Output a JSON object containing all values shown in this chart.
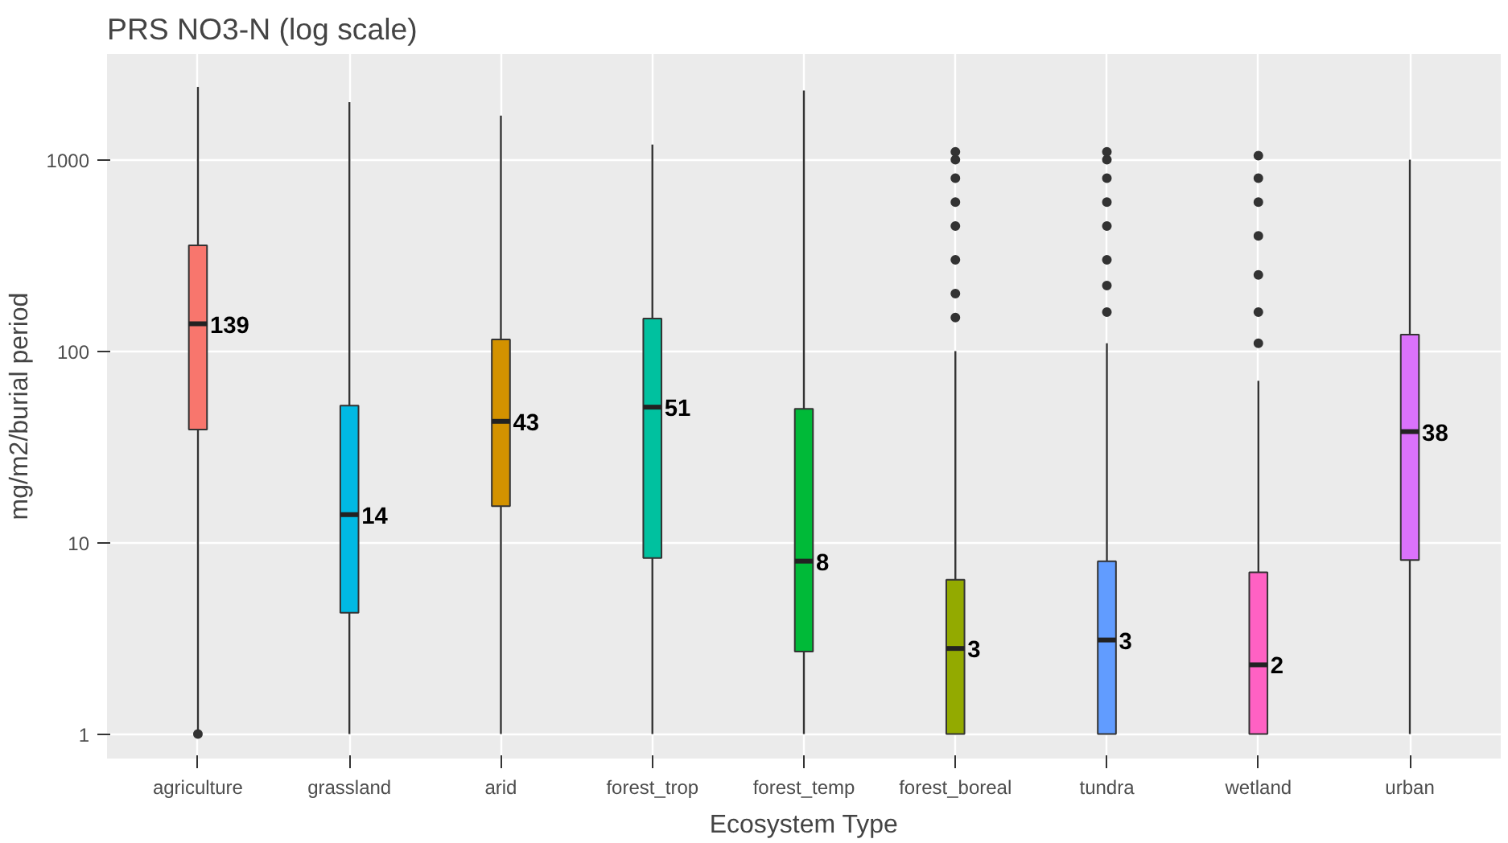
{
  "chart_data": {
    "type": "box",
    "title": "PRS NO3-N (log scale)",
    "xlabel": "Ecosystem Type",
    "ylabel": "mg/m2/burial period",
    "log": "y",
    "grid": true,
    "categories": [
      "agriculture",
      "grassland",
      "arid",
      "forest_trop",
      "forest_temp",
      "forest_boreal",
      "tundra",
      "wetland",
      "urban"
    ],
    "colors": [
      "#f8766d",
      "#00b9e3",
      "#d39200",
      "#00c19f",
      "#00ba38",
      "#93aa00",
      "#619cff",
      "#ff61c3",
      "#db72fb"
    ],
    "ylim": [
      0.745,
      3570
    ],
    "yticks": [
      1,
      10,
      100,
      1000
    ],
    "boxes": [
      {
        "low": 1,
        "q1": 39,
        "median": 139,
        "q3": 357,
        "high": 2400,
        "outliers": [
          1
        ]
      },
      {
        "low": 1,
        "q1": 4.3,
        "median": 14,
        "q3": 52,
        "high": 2000
      },
      {
        "low": 1,
        "q1": 15.5,
        "median": 43,
        "q3": 115,
        "high": 1700
      },
      {
        "low": 1,
        "q1": 8.3,
        "median": 51,
        "q3": 148,
        "high": 1200
      },
      {
        "low": 1,
        "q1": 2.7,
        "median": 8,
        "q3": 50,
        "high": 2300
      },
      {
        "low": 1,
        "q1": 1,
        "median": 2.8,
        "q3": 6.4,
        "high": 100,
        "outliers": [
          150,
          200,
          300,
          450,
          600,
          800,
          1000,
          1100
        ]
      },
      {
        "low": 1,
        "q1": 1,
        "median": 3.1,
        "q3": 8,
        "high": 110,
        "outliers": [
          160,
          220,
          300,
          450,
          600,
          800,
          1000,
          1100
        ]
      },
      {
        "low": 1,
        "q1": 1,
        "median": 2.3,
        "q3": 7,
        "high": 70,
        "outliers": [
          110,
          160,
          250,
          400,
          600,
          800,
          1050
        ]
      },
      {
        "low": 1,
        "q1": 8.1,
        "median": 38,
        "q3": 122,
        "high": 1000
      }
    ],
    "annotations": [
      {
        "text": "139",
        "x": "agriculture",
        "y": 139
      },
      {
        "text": "14",
        "x": "grassland",
        "y": 14
      },
      {
        "text": "43",
        "x": "arid",
        "y": 43
      },
      {
        "text": "51",
        "x": "forest_trop",
        "y": 51
      },
      {
        "text": "8",
        "x": "forest_temp",
        "y": 8
      },
      {
        "text": "3",
        "x": "forest_boreal",
        "y": 2.8
      },
      {
        "text": "3",
        "x": "tundra",
        "y": 3.1
      },
      {
        "text": "2",
        "x": "wetland",
        "y": 2.3
      },
      {
        "text": "38",
        "x": "urban",
        "y": 38
      }
    ]
  }
}
